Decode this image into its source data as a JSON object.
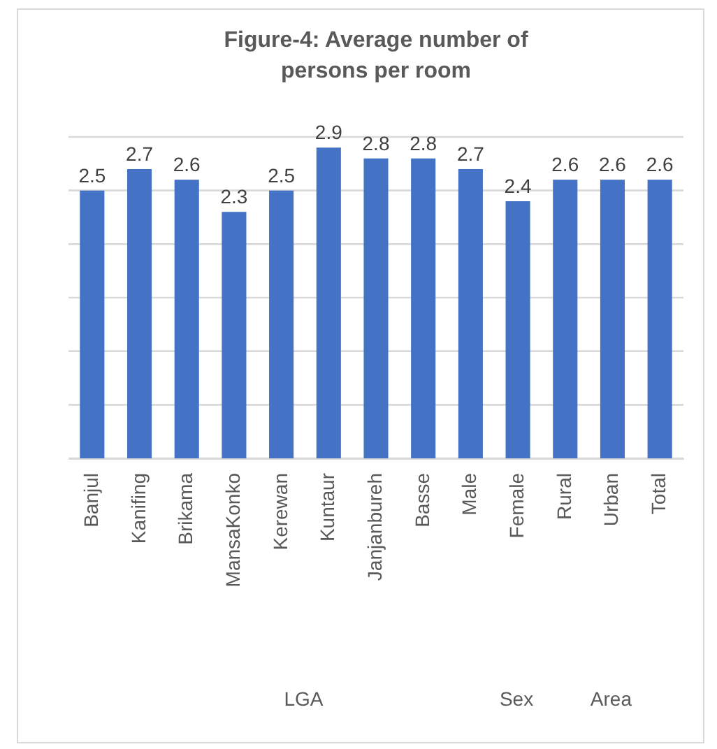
{
  "chart_data": {
    "type": "bar",
    "title": "Figure-4: Average number of persons per room",
    "categories": [
      "Banjul",
      "Kanifing",
      "Brikama",
      "MansaKonko",
      "Kerewan",
      "Kuntaur",
      "Janjanbureh",
      "Basse",
      "Male",
      "Female",
      "Rural",
      "Urban",
      "Total"
    ],
    "values": [
      2.5,
      2.7,
      2.6,
      2.3,
      2.5,
      2.9,
      2.8,
      2.8,
      2.7,
      2.4,
      2.6,
      2.6,
      2.6
    ],
    "color": "#4472c4",
    "data_labels": true,
    "ylim": [
      0,
      3
    ],
    "yticks": [
      {
        "value": 0,
        "label": null
      },
      {
        "value": 0.5,
        "label": null
      },
      {
        "value": 1,
        "label": null
      },
      {
        "value": 1.5,
        "label": null
      },
      {
        "value": 2,
        "label": null
      },
      {
        "value": 2.5,
        "label": null
      },
      {
        "value": 3,
        "label": null
      }
    ],
    "grid": "y",
    "tick_labels": "x",
    "legend": false,
    "annotations": [
      "LGA",
      "Sex",
      "Area"
    ]
  }
}
